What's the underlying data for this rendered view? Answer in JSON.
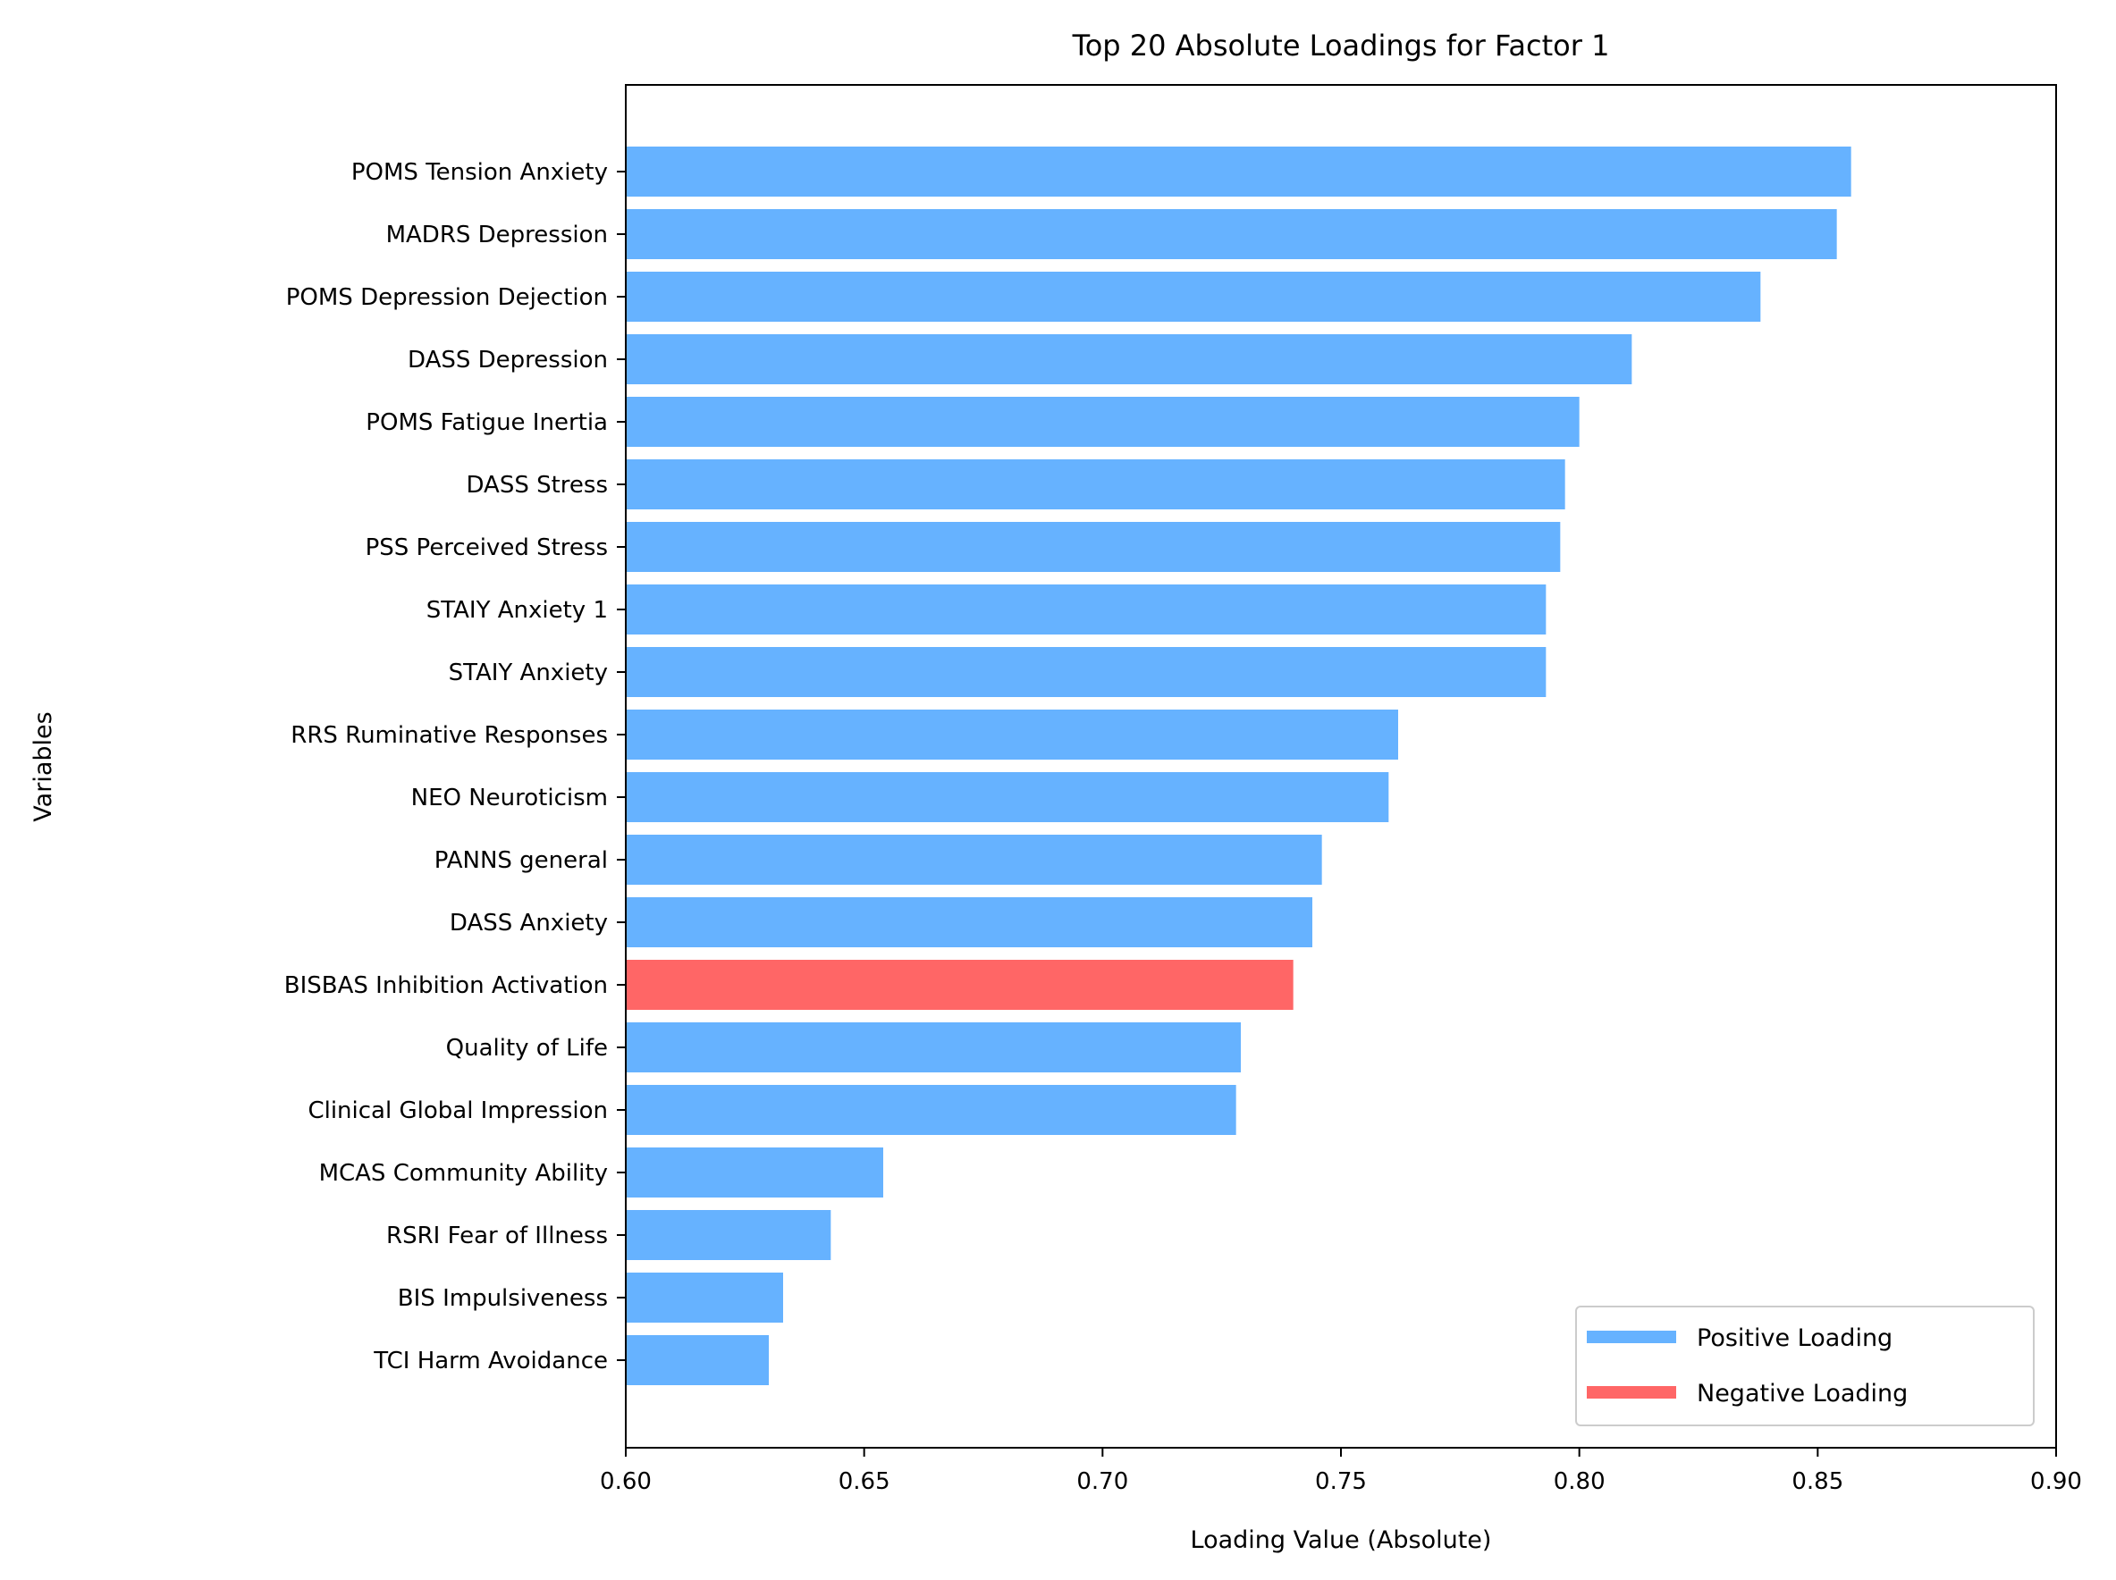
{
  "chart_data": {
    "type": "bar",
    "orientation": "horizontal",
    "title": "Top 20 Absolute Loadings for Factor 1",
    "xlabel": "Loading Value (Absolute)",
    "ylabel": "Variables",
    "xlim": [
      0.6,
      0.9
    ],
    "xticks": [
      "0.60",
      "0.65",
      "0.70",
      "0.75",
      "0.80",
      "0.85",
      "0.90"
    ],
    "grid": false,
    "legend_position": "bottom-right",
    "legend": [
      {
        "label": "Positive Loading",
        "color": "#66b2ff"
      },
      {
        "label": "Negative Loading",
        "color": "#ff6666"
      }
    ],
    "categories": [
      "POMS Tension Anxiety",
      "MADRS Depression",
      "POMS Depression Dejection",
      "DASS Depression",
      "POMS Fatigue Inertia",
      "DASS Stress",
      "PSS Perceived Stress",
      "STAIY Anxiety 1",
      "STAIY Anxiety",
      "RRS Ruminative Responses",
      "NEO Neuroticism",
      "PANNS general",
      "DASS Anxiety",
      "BISBAS Inhibition Activation",
      "Quality of Life",
      "Clinical Global Impression",
      "MCAS Community Ability",
      "RSRI Fear of Illness",
      "BIS Impulsiveness",
      "TCI Harm Avoidance"
    ],
    "values": [
      0.857,
      0.854,
      0.838,
      0.811,
      0.8,
      0.797,
      0.796,
      0.793,
      0.793,
      0.762,
      0.76,
      0.746,
      0.744,
      0.74,
      0.729,
      0.728,
      0.654,
      0.643,
      0.633,
      0.63
    ],
    "signs": [
      "positive",
      "positive",
      "positive",
      "positive",
      "positive",
      "positive",
      "positive",
      "positive",
      "positive",
      "positive",
      "positive",
      "positive",
      "positive",
      "negative",
      "positive",
      "positive",
      "positive",
      "positive",
      "positive",
      "positive"
    ]
  }
}
